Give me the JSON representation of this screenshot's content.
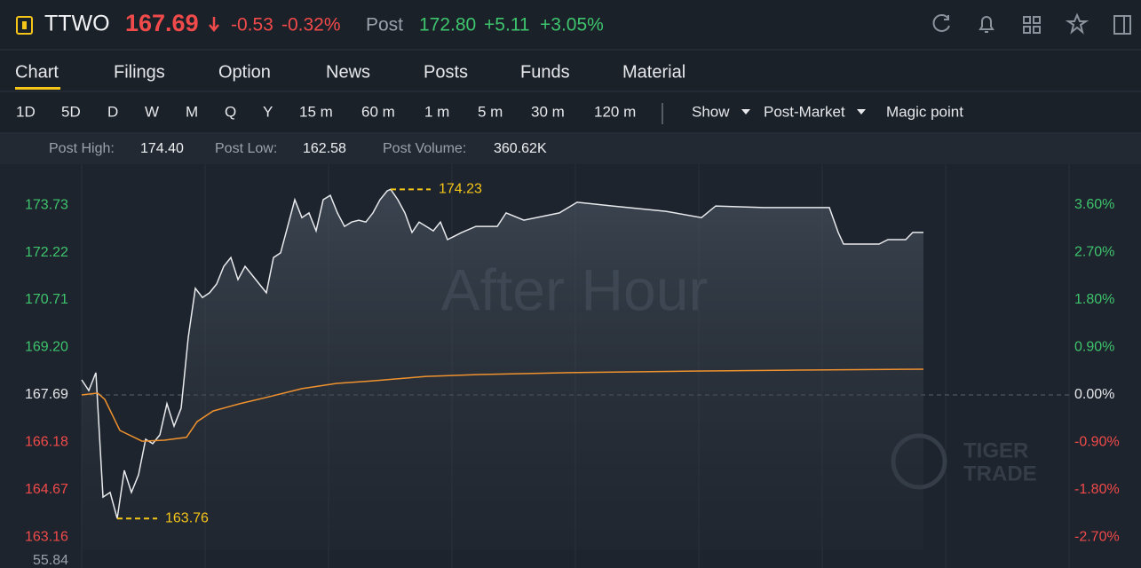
{
  "header": {
    "symbol": "TTWO",
    "price": "167.69",
    "change": "-0.53",
    "change_pct": "-0.32%",
    "session": "Post",
    "post_price": "172.80",
    "post_change": "+5.11",
    "post_change_pct": "+3.05%"
  },
  "tabs": [
    "Chart",
    "Filings",
    "Option",
    "News",
    "Posts",
    "Funds",
    "Material"
  ],
  "periods": [
    "1D",
    "5D",
    "D",
    "W",
    "M",
    "Q",
    "Y",
    "15 m",
    "60 m",
    "1 m",
    "5 m",
    "30 m",
    "120 m"
  ],
  "options": [
    "Show",
    "Post-Market",
    "Magic point"
  ],
  "stats": [
    {
      "label": "Post High:",
      "value": "174.40"
    },
    {
      "label": "Post Low:",
      "value": "162.58"
    },
    {
      "label": "Post Volume:",
      "value": "360.62K"
    }
  ],
  "chart_data": {
    "type": "line",
    "watermark": "After Hour",
    "logo": [
      "TIGER",
      "TRADE"
    ],
    "reference": 167.69,
    "xlim": [
      0,
      278
    ],
    "xticks": [
      0,
      34.75,
      69.5,
      104.25,
      139,
      173.75,
      208.5,
      243.25,
      278
    ],
    "ylim": [
      162.75,
      175.03
    ],
    "yticks": [
      173.73,
      172.22,
      170.71,
      {
        "value": 169.2,
        "label": "169.20"
      },
      167.69,
      166.18,
      164.67,
      163.16
    ],
    "y2lim": [
      -2.944,
      4.374
    ],
    "y2ticks": [
      {
        "value": 3.6,
        "label": "3.60%"
      },
      {
        "value": 2.7,
        "label": "2.70%"
      },
      {
        "value": 1.8,
        "label": "1.80%"
      },
      {
        "value": 0.9,
        "label": "0.90%"
      },
      {
        "value": 0,
        "label": "0.00%"
      },
      {
        "value": -0.9,
        "label": "-0.90%"
      },
      {
        "value": -1.8,
        "label": "-1.80%"
      },
      {
        "value": -2.7,
        "label": "-2.70%"
      }
    ],
    "volume_ticks": [
      55.84
    ],
    "series": [
      {
        "color": "#e8eaed",
        "area": true,
        "x": [
          0,
          2,
          4,
          6,
          8,
          10,
          12,
          14,
          16,
          18,
          20,
          22,
          24,
          26,
          28,
          30,
          32,
          34,
          36,
          38,
          40,
          42,
          44,
          46,
          48,
          50,
          52,
          54,
          56,
          58,
          60,
          62,
          64,
          66,
          68,
          70,
          72,
          74,
          76,
          78,
          80,
          82,
          84,
          86,
          87,
          89,
          91,
          93,
          95,
          97,
          99,
          101,
          103,
          107,
          111,
          117,
          119.5,
          124.5,
          134.5,
          139.5,
          149.5,
          164.5,
          174.5,
          178.5,
          192,
          210.5,
          213,
          214.5,
          224.5,
          227,
          232,
          234,
          237
        ],
        "values": [
          168.17,
          167.83,
          168.4,
          164.44,
          164.59,
          163.76,
          165.29,
          164.59,
          165.15,
          166.28,
          166.14,
          166.42,
          167.41,
          166.7,
          167.27,
          169.52,
          171.08,
          170.79,
          170.94,
          171.22,
          171.78,
          172.06,
          171.36,
          171.78,
          171.5,
          171.22,
          170.94,
          172.06,
          172.21,
          173.05,
          173.9,
          173.33,
          173.48,
          172.91,
          173.9,
          174.04,
          173.48,
          173.05,
          173.19,
          173.25,
          173.19,
          173.48,
          173.9,
          174.18,
          174.23,
          173.9,
          173.48,
          172.86,
          173.19,
          173.05,
          172.91,
          173.19,
          172.63,
          172.86,
          173.05,
          173.05,
          173.48,
          173.25,
          173.48,
          173.82,
          173.7,
          173.53,
          173.33,
          173.7,
          173.65,
          173.65,
          172.86,
          172.49,
          172.49,
          172.63,
          172.63,
          172.86,
          172.86
        ]
      },
      {
        "color": "#f0922e",
        "area": false,
        "x": [
          0,
          4.5,
          6.5,
          10.75,
          17,
          23.25,
          29.5,
          32.5,
          37,
          44.5,
          52,
          62,
          72,
          82,
          97,
          112,
          137,
          172,
          202,
          237
        ],
        "values": [
          167.69,
          167.75,
          167.55,
          166.56,
          166.22,
          166.25,
          166.34,
          166.84,
          167.18,
          167.41,
          167.61,
          167.89,
          168.06,
          168.14,
          168.28,
          168.34,
          168.4,
          168.45,
          168.48,
          168.51
        ]
      }
    ],
    "annotations": [
      {
        "x": 87,
        "value": 174.23
      },
      {
        "x": 10,
        "value": 163.76
      }
    ]
  }
}
